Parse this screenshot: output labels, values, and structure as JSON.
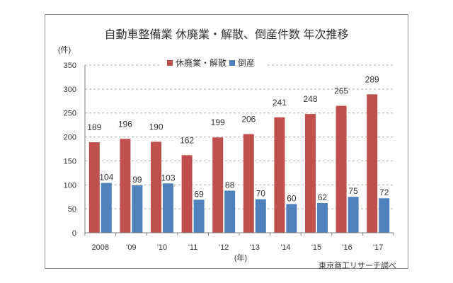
{
  "chart_data": {
    "type": "bar",
    "title": "自動車整備業 休廃業・解散、倒産件数 年次推移",
    "ylabel": "(件)",
    "xlabel": "(年)",
    "categories": [
      "2008",
      "'09",
      "'10",
      "'11",
      "'12",
      "'13",
      "'14",
      "'15",
      "'16",
      "'17"
    ],
    "series": [
      {
        "name": "休廃業・解散",
        "values": [
          189,
          196,
          190,
          162,
          199,
          206,
          241,
          248,
          265,
          289
        ],
        "color": "#c0504d"
      },
      {
        "name": "倒産",
        "values": [
          104,
          99,
          103,
          69,
          88,
          70,
          60,
          62,
          75,
          72
        ],
        "color": "#4f81bd"
      }
    ],
    "ylim": [
      0,
      350
    ],
    "yticks": [
      0,
      50,
      100,
      150,
      200,
      250,
      300,
      350
    ],
    "grid": true,
    "legend_position": "top"
  },
  "source": "東京商工リサーチ調べ"
}
